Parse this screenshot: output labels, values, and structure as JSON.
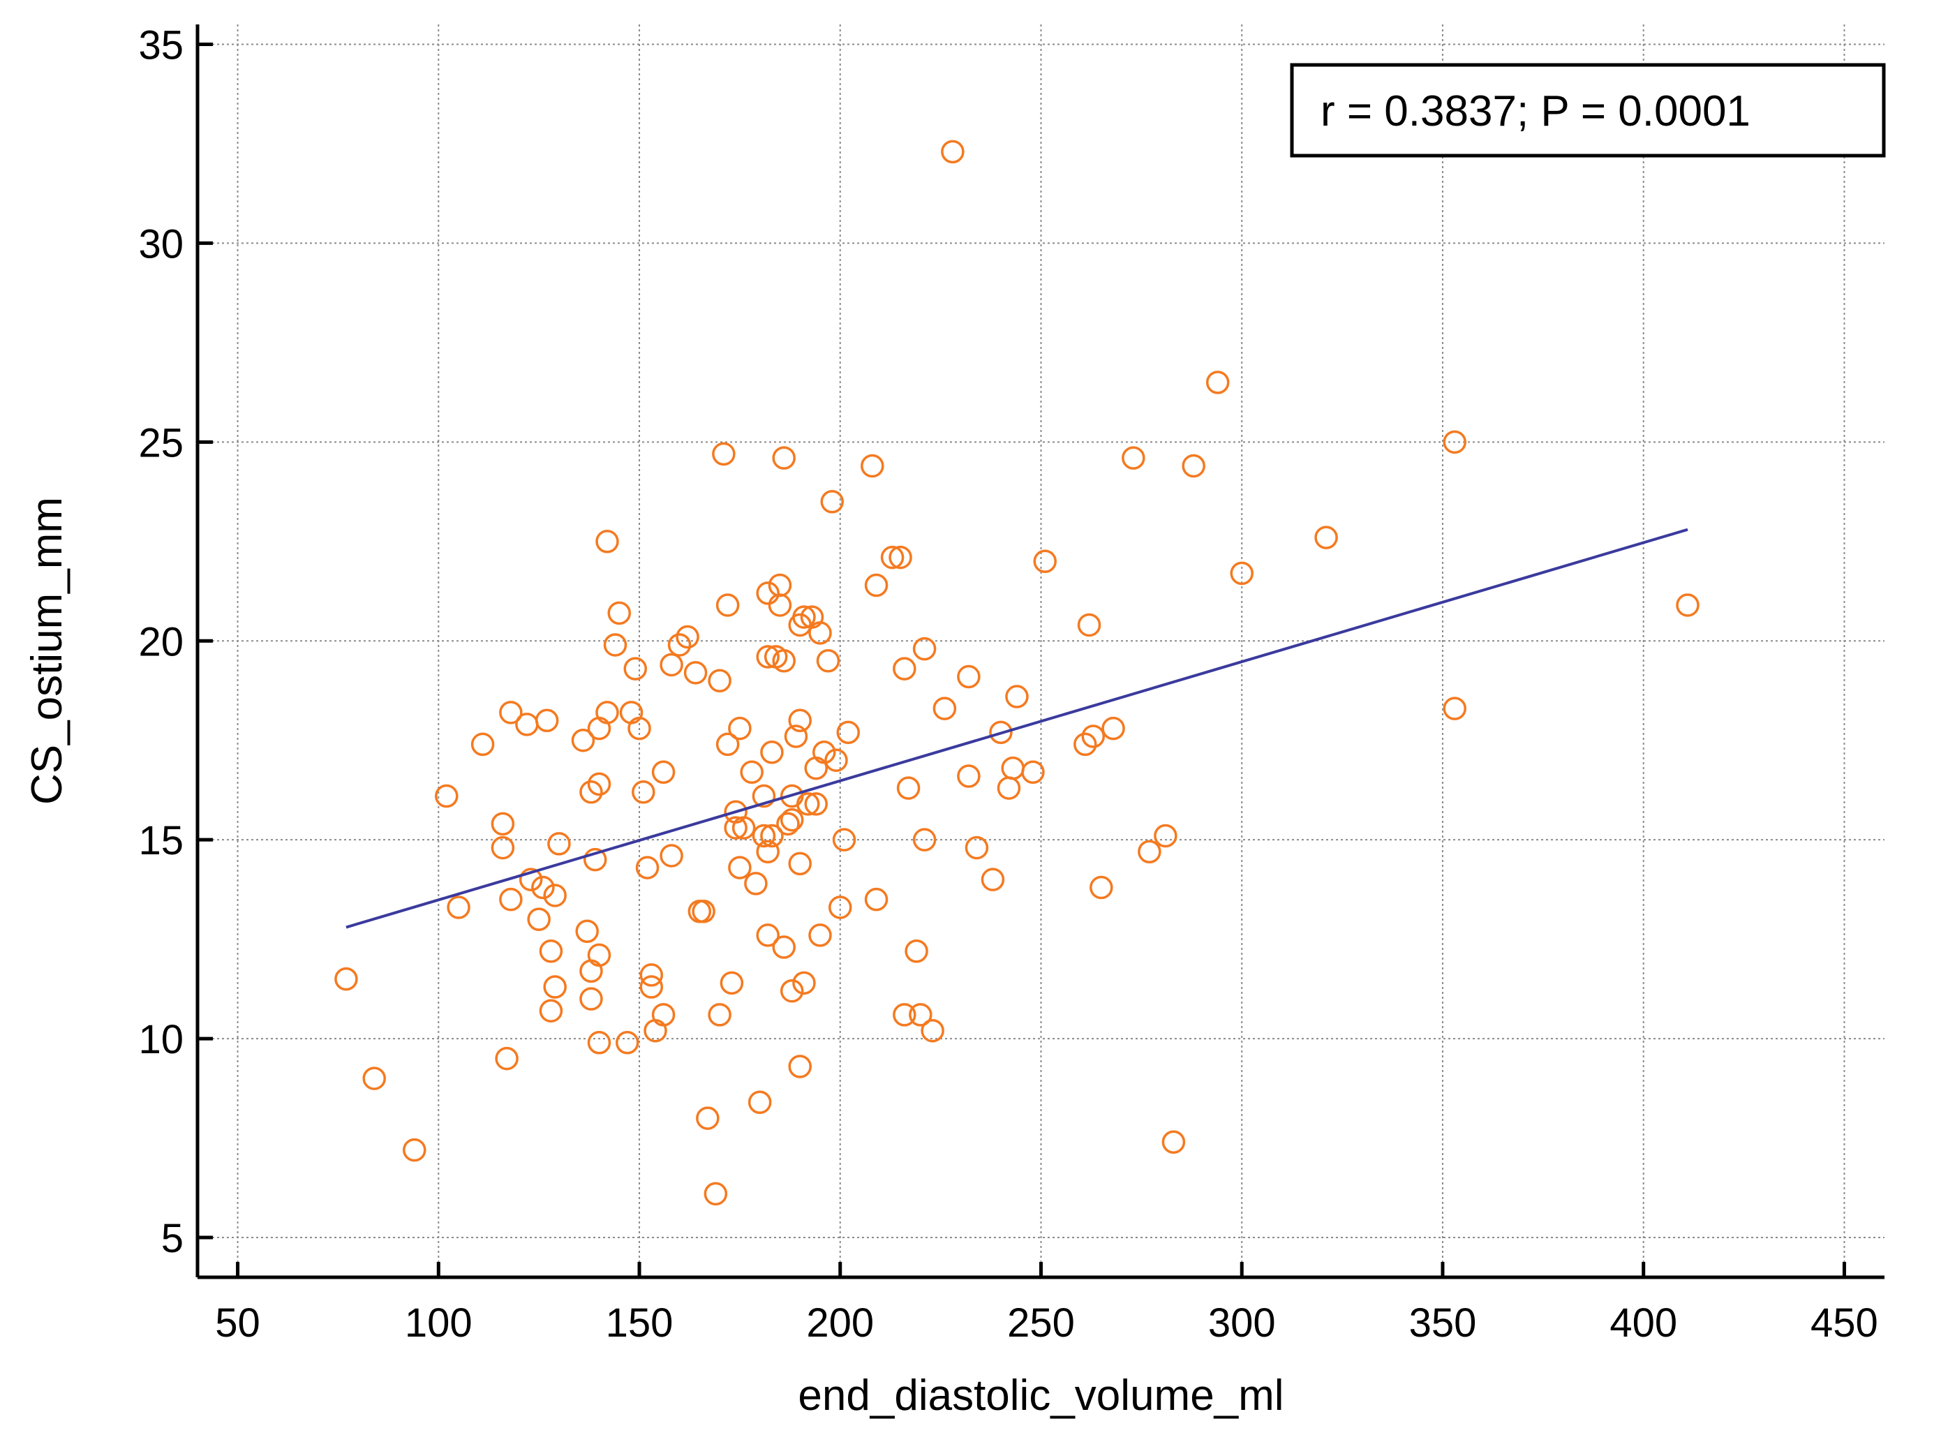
{
  "chart_data": {
    "type": "scatter",
    "title": "",
    "xlabel": "end_diastolic_volume_ml",
    "ylabel": "CS_ostium_mm",
    "xlim": [
      40,
      460
    ],
    "ylim": [
      4,
      35.5
    ],
    "x_ticks": [
      50,
      100,
      150,
      200,
      250,
      300,
      350,
      400,
      450
    ],
    "y_ticks": [
      5,
      10,
      15,
      20,
      25,
      30,
      35
    ],
    "grid": true,
    "annotation": "r = 0.3837; P = 0.0001",
    "annotation_placement": "top-right",
    "colors": {
      "points": "#f47a20",
      "regression": "#3a3a9e"
    },
    "regression_line": {
      "x": [
        77,
        411
      ],
      "y": [
        12.8,
        22.8
      ]
    },
    "points": [
      [
        77,
        11.5
      ],
      [
        84,
        9.0
      ],
      [
        94,
        7.2
      ],
      [
        102,
        16.1
      ],
      [
        105,
        13.3
      ],
      [
        111,
        17.4
      ],
      [
        116,
        15.4
      ],
      [
        116,
        14.8
      ],
      [
        117,
        9.5
      ],
      [
        118,
        13.5
      ],
      [
        118,
        18.2
      ],
      [
        122,
        17.9
      ],
      [
        123,
        14.0
      ],
      [
        125,
        13.0
      ],
      [
        126,
        13.8
      ],
      [
        127,
        18.0
      ],
      [
        128,
        12.2
      ],
      [
        128,
        10.7
      ],
      [
        129,
        13.6
      ],
      [
        129,
        11.3
      ],
      [
        130,
        14.9
      ],
      [
        136,
        17.5
      ],
      [
        137,
        12.7
      ],
      [
        138,
        16.2
      ],
      [
        138,
        11.7
      ],
      [
        138,
        11.0
      ],
      [
        139,
        14.5
      ],
      [
        140,
        17.8
      ],
      [
        140,
        16.4
      ],
      [
        140,
        12.1
      ],
      [
        140,
        9.9
      ],
      [
        142,
        18.2
      ],
      [
        142,
        22.5
      ],
      [
        144,
        19.9
      ],
      [
        145,
        20.7
      ],
      [
        147,
        9.9
      ],
      [
        148,
        18.2
      ],
      [
        149,
        19.3
      ],
      [
        150,
        17.8
      ],
      [
        151,
        16.2
      ],
      [
        152,
        14.3
      ],
      [
        153,
        11.3
      ],
      [
        153,
        11.6
      ],
      [
        154,
        10.2
      ],
      [
        156,
        16.7
      ],
      [
        156,
        10.6
      ],
      [
        158,
        19.4
      ],
      [
        158,
        14.6
      ],
      [
        160,
        19.9
      ],
      [
        162,
        20.1
      ],
      [
        164,
        19.2
      ],
      [
        165,
        13.2
      ],
      [
        166,
        13.2
      ],
      [
        167,
        8.0
      ],
      [
        169,
        6.1
      ],
      [
        170,
        10.6
      ],
      [
        170,
        19.0
      ],
      [
        171,
        24.7
      ],
      [
        172,
        20.9
      ],
      [
        172,
        17.4
      ],
      [
        173,
        11.4
      ],
      [
        174,
        15.7
      ],
      [
        174,
        15.3
      ],
      [
        175,
        17.8
      ],
      [
        175,
        14.3
      ],
      [
        176,
        15.3
      ],
      [
        178,
        16.7
      ],
      [
        179,
        13.9
      ],
      [
        180,
        8.4
      ],
      [
        181,
        16.1
      ],
      [
        181,
        15.1
      ],
      [
        182,
        21.2
      ],
      [
        182,
        19.6
      ],
      [
        182,
        14.7
      ],
      [
        182,
        12.6
      ],
      [
        183,
        17.2
      ],
      [
        183,
        15.1
      ],
      [
        184,
        19.6
      ],
      [
        185,
        21.4
      ],
      [
        185,
        20.9
      ],
      [
        186,
        24.6
      ],
      [
        186,
        19.5
      ],
      [
        186,
        12.3
      ],
      [
        187,
        15.4
      ],
      [
        188,
        16.1
      ],
      [
        188,
        15.5
      ],
      [
        188,
        11.2
      ],
      [
        189,
        17.6
      ],
      [
        190,
        20.4
      ],
      [
        190,
        18.0
      ],
      [
        190,
        14.4
      ],
      [
        190,
        9.3
      ],
      [
        191,
        20.6
      ],
      [
        191,
        11.4
      ],
      [
        192,
        15.9
      ],
      [
        193,
        20.6
      ],
      [
        194,
        16.8
      ],
      [
        194,
        15.9
      ],
      [
        195,
        20.2
      ],
      [
        195,
        12.6
      ],
      [
        196,
        17.2
      ],
      [
        197,
        19.5
      ],
      [
        198,
        23.5
      ],
      [
        199,
        17.0
      ],
      [
        200,
        13.3
      ],
      [
        201,
        15.0
      ],
      [
        202,
        17.7
      ],
      [
        208,
        24.4
      ],
      [
        209,
        13.5
      ],
      [
        209,
        21.4
      ],
      [
        213,
        22.1
      ],
      [
        215,
        22.1
      ],
      [
        216,
        19.3
      ],
      [
        216,
        10.6
      ],
      [
        217,
        16.3
      ],
      [
        219,
        12.2
      ],
      [
        220,
        10.6
      ],
      [
        221,
        19.8
      ],
      [
        221,
        15.0
      ],
      [
        223,
        10.2
      ],
      [
        226,
        18.3
      ],
      [
        228,
        32.3
      ],
      [
        232,
        16.6
      ],
      [
        232,
        19.1
      ],
      [
        234,
        14.8
      ],
      [
        238,
        14.0
      ],
      [
        240,
        17.7
      ],
      [
        242,
        16.3
      ],
      [
        243,
        16.8
      ],
      [
        244,
        18.6
      ],
      [
        248,
        16.7
      ],
      [
        251,
        22.0
      ],
      [
        261,
        17.4
      ],
      [
        262,
        20.4
      ],
      [
        263,
        17.6
      ],
      [
        265,
        13.8
      ],
      [
        268,
        17.8
      ],
      [
        273,
        24.6
      ],
      [
        277,
        14.7
      ],
      [
        281,
        15.1
      ],
      [
        283,
        7.4
      ],
      [
        288,
        24.4
      ],
      [
        294,
        26.5
      ],
      [
        300,
        21.7
      ],
      [
        321,
        22.6
      ],
      [
        353,
        25.0
      ],
      [
        353,
        18.3
      ],
      [
        411,
        20.9
      ]
    ]
  }
}
